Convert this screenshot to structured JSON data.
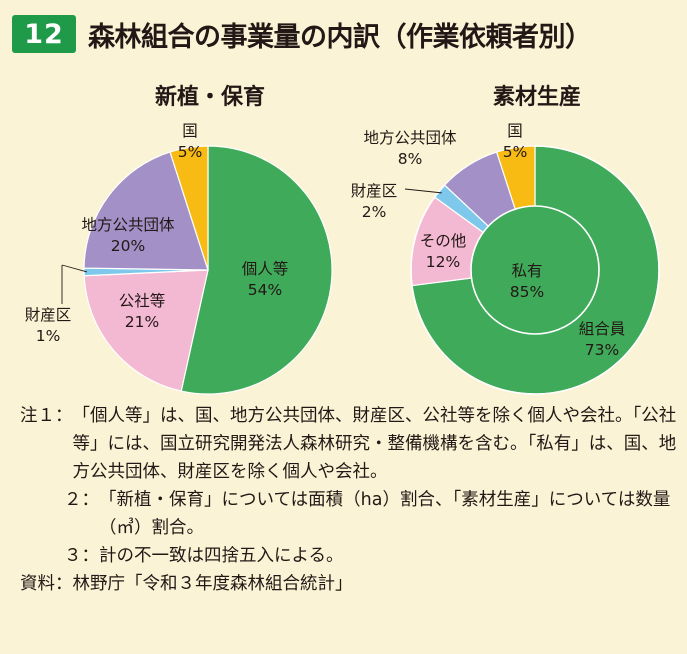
{
  "header": {
    "number": "12",
    "title": "森林組合の事業量の内訳（作業依頼者別）"
  },
  "chart_data": [
    {
      "type": "pie",
      "title": "新植・保育",
      "slices": [
        {
          "label": "個人等",
          "value": 54,
          "display": "54%",
          "color": "#3eaa5a"
        },
        {
          "label": "公社等",
          "value": 21,
          "display": "21%",
          "color": "#f3b8d2"
        },
        {
          "label": "財産区",
          "value": 1,
          "display": "1%",
          "color": "#7ec8ec"
        },
        {
          "label": "地方公共団体",
          "value": 20,
          "display": "20%",
          "color": "#a290c6"
        },
        {
          "label": "国",
          "value": 5,
          "display": "5%",
          "color": "#f7bb14"
        }
      ]
    },
    {
      "type": "pie",
      "title": "素材生産",
      "slices": [
        {
          "label": "組合員",
          "value": 73,
          "display": "73%",
          "color": "#3eaa5a"
        },
        {
          "label": "その他",
          "value": 12,
          "display": "12%",
          "color": "#f3b8d2"
        },
        {
          "label": "財産区",
          "value": 2,
          "display": "2%",
          "color": "#7ec8ec"
        },
        {
          "label": "地方公共団体",
          "value": 8,
          "display": "8%",
          "color": "#a290c6"
        },
        {
          "label": "国",
          "value": 5,
          "display": "5%",
          "color": "#f7bb14"
        }
      ],
      "center_annotation": {
        "label": "私有",
        "display": "85%"
      }
    }
  ],
  "notes": [
    {
      "label": "注１：",
      "text": "「個人等」は、国、地方公共団体、財産区、公社等を除く個人や会社。「公社等」には、国立研究開発法人森林研究・整備機構を含む。「私有」は、国、地方公共団体、財産区を除く個人や会社。"
    },
    {
      "label": "２：",
      "text": "「新植・保育」については面積（ha）割合、「素材生産」については数量（㎥）割合。"
    },
    {
      "label": "３：",
      "text": "計の不一致は四捨五入による。"
    },
    {
      "label": "資料：",
      "text": "林野庁「令和３年度森林組合統計」"
    }
  ]
}
